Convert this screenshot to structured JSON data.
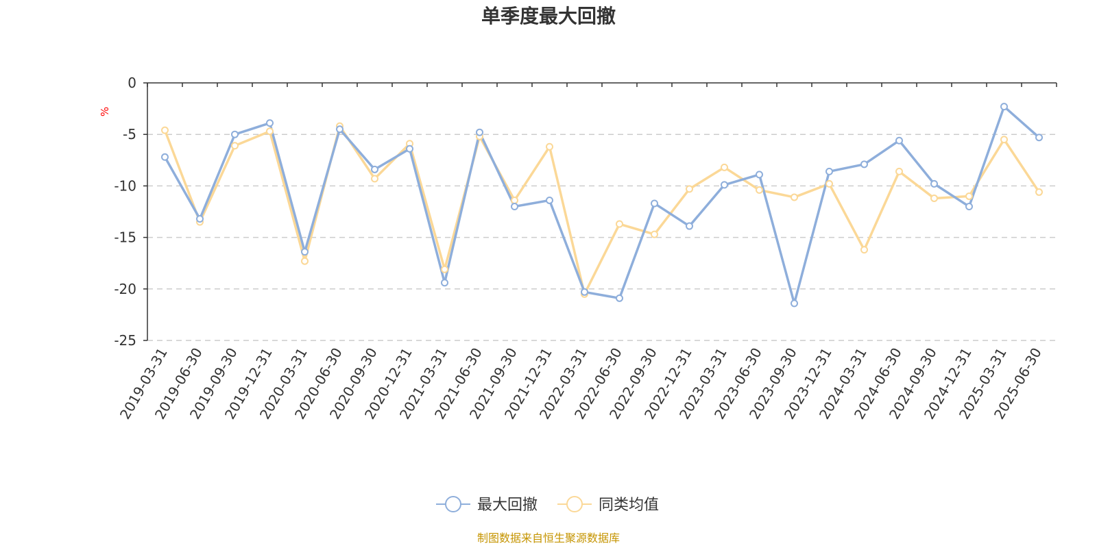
{
  "chart_data": {
    "type": "line",
    "title": "单季度最大回撤",
    "ylabel": "%",
    "ylim": [
      -25,
      0
    ],
    "yticks": [
      0,
      -5,
      -10,
      -15,
      -20,
      -25
    ],
    "grid": true,
    "legend_position": "bottom",
    "source": "制图数据来自恒生聚源数据库",
    "categories": [
      "2019-03-31",
      "2019-06-30",
      "2019-09-30",
      "2019-12-31",
      "2020-03-31",
      "2020-06-30",
      "2020-09-30",
      "2020-12-31",
      "2021-03-31",
      "2021-06-30",
      "2021-09-30",
      "2021-12-31",
      "2022-03-31",
      "2022-06-30",
      "2022-09-30",
      "2022-12-31",
      "2023-03-31",
      "2023-06-30",
      "2023-09-30",
      "2023-12-31",
      "2024-03-31",
      "2024-06-30",
      "2024-09-30",
      "2024-12-31",
      "2025-03-31",
      "2025-06-30"
    ],
    "series": [
      {
        "name": "最大回撤",
        "color": "#8eaedb",
        "values": [
          -7.2,
          -13.2,
          -5.0,
          -3.9,
          -16.4,
          -4.5,
          -8.4,
          -6.4,
          -19.4,
          -4.8,
          -12.0,
          -11.4,
          -20.3,
          -20.9,
          -11.7,
          -13.9,
          -9.9,
          -8.9,
          -21.4,
          -8.6,
          -7.9,
          -5.6,
          -9.8,
          -12.0,
          -2.3,
          -5.3
        ]
      },
      {
        "name": "同类均值",
        "color": "#fbd897",
        "values": [
          -4.6,
          -13.5,
          -6.1,
          -4.7,
          -17.3,
          -4.2,
          -9.3,
          -5.9,
          -18.1,
          -5.2,
          -11.4,
          -6.2,
          -20.5,
          -13.7,
          -14.7,
          -10.3,
          -8.2,
          -10.4,
          -11.1,
          -9.8,
          -16.2,
          -8.6,
          -11.2,
          -11.0,
          -5.5,
          -10.6
        ]
      }
    ]
  }
}
